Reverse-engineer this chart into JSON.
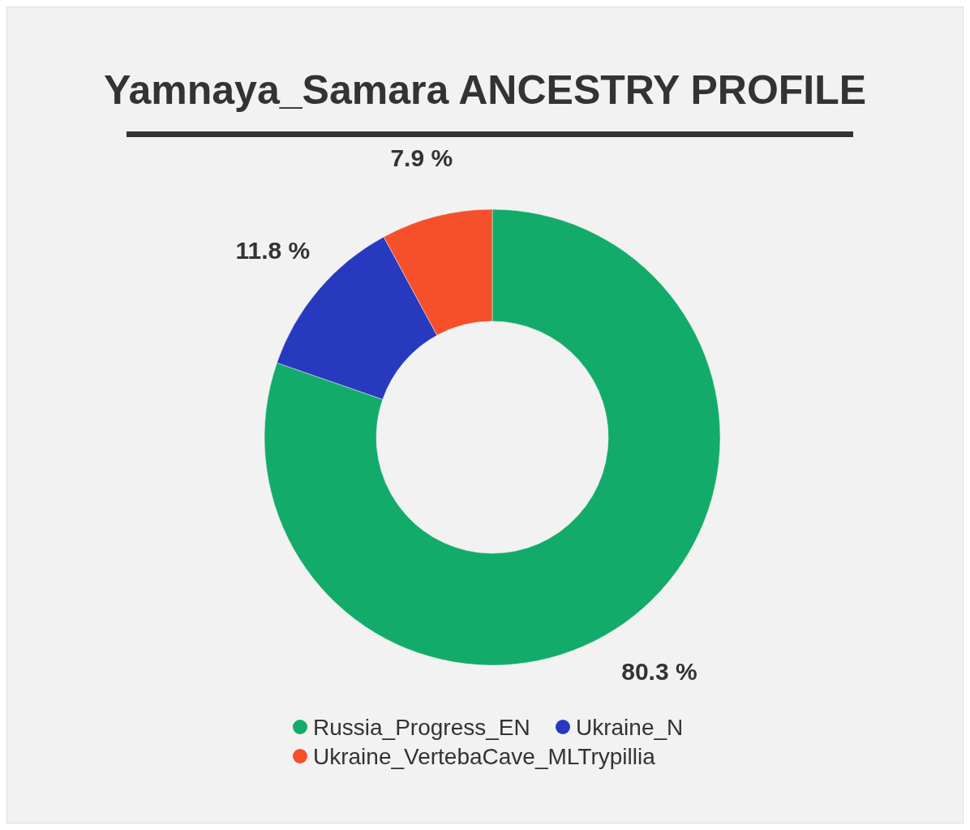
{
  "chart_data": {
    "type": "donut",
    "title": "Yamnaya_Samara ANCESTRY PROFILE",
    "categories": [
      "Russia_Progress_EN",
      "Ukraine_N",
      "Ukraine_VertebaCave_MLTrypillia"
    ],
    "values": [
      80.3,
      11.8,
      7.9
    ],
    "colors": [
      "#13ab6a",
      "#2639bf",
      "#f64f2c"
    ],
    "value_labels": [
      "80.3 %",
      "11.8 %",
      "7.9 %"
    ],
    "legend": "bottom"
  }
}
